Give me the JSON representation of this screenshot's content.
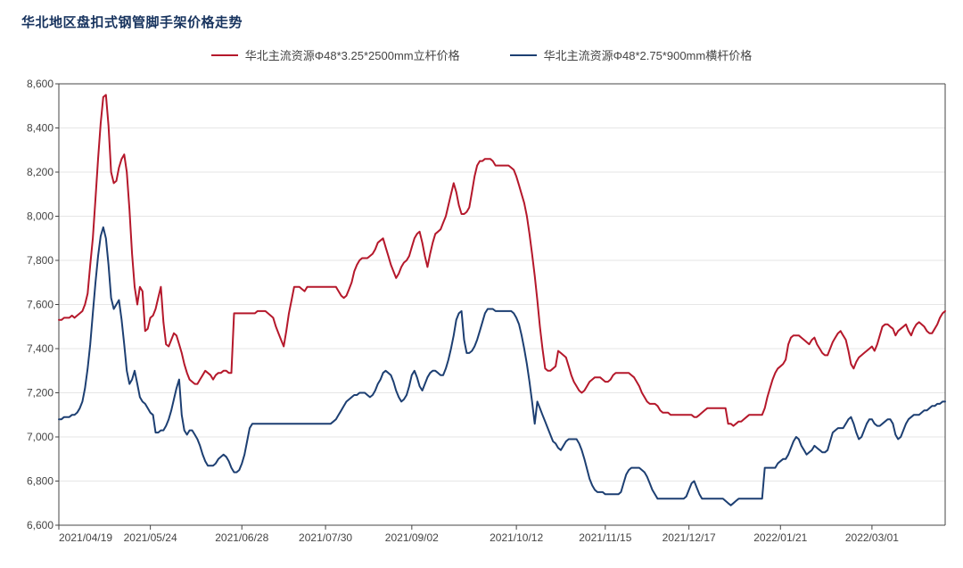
{
  "title": "华北地区盘扣式钢管脚手架价格走势",
  "background_color": "#ffffff",
  "grid_color": "#e6e6e6",
  "axis_color": "#444444",
  "label_color": "#444444",
  "label_fontsize": 12,
  "title_color": "#17335e",
  "title_fontsize": 15,
  "ylim": [
    6600,
    8600
  ],
  "ytick_step": 200,
  "ytick_labels": [
    "6,600",
    "6,800",
    "7,000",
    "7,200",
    "7,400",
    "7,600",
    "7,800",
    "8,000",
    "8,200",
    "8,400",
    "8,600"
  ],
  "xtick_positions": [
    0,
    35,
    70,
    102,
    135,
    175,
    209,
    241,
    276,
    311
  ],
  "xtick_labels": [
    "2021/04/19",
    "2021/05/24",
    "2021/06/28",
    "2021/07/30",
    "2021/09/02",
    "2021/10/12",
    "2021/11/15",
    "2021/12/17",
    "2022/01/21",
    "2022/03/01"
  ],
  "x_count": 340,
  "line_width": 2,
  "series": [
    {
      "name": "华北主流资源Φ48*3.25*2500mm立杆价格",
      "color": "#b5182b",
      "values": [
        7530,
        7530,
        7540,
        7540,
        7540,
        7550,
        7540,
        7550,
        7560,
        7570,
        7600,
        7650,
        7780,
        7900,
        8080,
        8260,
        8420,
        8540,
        8550,
        8410,
        8200,
        8150,
        8160,
        8220,
        8260,
        8280,
        8200,
        8030,
        7830,
        7680,
        7600,
        7680,
        7660,
        7480,
        7490,
        7540,
        7550,
        7580,
        7630,
        7680,
        7520,
        7420,
        7410,
        7440,
        7470,
        7460,
        7420,
        7380,
        7330,
        7290,
        7260,
        7250,
        7240,
        7240,
        7260,
        7280,
        7300,
        7290,
        7280,
        7260,
        7280,
        7290,
        7290,
        7300,
        7300,
        7290,
        7290,
        7560,
        7560,
        7560,
        7560,
        7560,
        7560,
        7560,
        7560,
        7560,
        7570,
        7570,
        7570,
        7570,
        7560,
        7550,
        7540,
        7500,
        7470,
        7440,
        7410,
        7480,
        7560,
        7620,
        7680,
        7680,
        7680,
        7670,
        7660,
        7680,
        7680,
        7680,
        7680,
        7680,
        7680,
        7680,
        7680,
        7680,
        7680,
        7680,
        7680,
        7660,
        7640,
        7630,
        7640,
        7670,
        7700,
        7750,
        7780,
        7800,
        7810,
        7810,
        7810,
        7820,
        7830,
        7850,
        7880,
        7890,
        7900,
        7860,
        7820,
        7780,
        7750,
        7720,
        7740,
        7770,
        7790,
        7800,
        7820,
        7860,
        7900,
        7920,
        7930,
        7880,
        7820,
        7770,
        7830,
        7880,
        7920,
        7930,
        7940,
        7970,
        8000,
        8050,
        8100,
        8150,
        8110,
        8050,
        8010,
        8010,
        8020,
        8040,
        8110,
        8180,
        8230,
        8250,
        8250,
        8260,
        8260,
        8260,
        8250,
        8230,
        8230,
        8230,
        8230,
        8230,
        8230,
        8220,
        8210,
        8180,
        8140,
        8100,
        8060,
        8000,
        7920,
        7830,
        7730,
        7620,
        7500,
        7400,
        7310,
        7300,
        7300,
        7310,
        7320,
        7390,
        7380,
        7370,
        7360,
        7320,
        7280,
        7250,
        7230,
        7210,
        7200,
        7210,
        7230,
        7250,
        7260,
        7270,
        7270,
        7270,
        7260,
        7250,
        7250,
        7260,
        7280,
        7290,
        7290,
        7290,
        7290,
        7290,
        7290,
        7280,
        7270,
        7250,
        7230,
        7200,
        7180,
        7160,
        7150,
        7150,
        7150,
        7140,
        7120,
        7110,
        7110,
        7110,
        7100,
        7100,
        7100,
        7100,
        7100,
        7100,
        7100,
        7100,
        7100,
        7090,
        7090,
        7100,
        7110,
        7120,
        7130,
        7130,
        7130,
        7130,
        7130,
        7130,
        7130,
        7130,
        7060,
        7060,
        7050,
        7060,
        7070,
        7070,
        7080,
        7090,
        7100,
        7100,
        7100,
        7100,
        7100,
        7100,
        7130,
        7180,
        7220,
        7260,
        7290,
        7310,
        7320,
        7330,
        7350,
        7420,
        7450,
        7460,
        7460,
        7460,
        7450,
        7440,
        7430,
        7420,
        7440,
        7450,
        7420,
        7400,
        7380,
        7370,
        7370,
        7400,
        7430,
        7450,
        7470,
        7480,
        7460,
        7440,
        7390,
        7330,
        7310,
        7340,
        7360,
        7370,
        7380,
        7390,
        7400,
        7410,
        7390,
        7420,
        7460,
        7500,
        7510,
        7510,
        7500,
        7490,
        7460,
        7480,
        7490,
        7500,
        7510,
        7480,
        7460,
        7490,
        7510,
        7520,
        7510,
        7500,
        7480,
        7470,
        7470,
        7490,
        7510,
        7540,
        7560,
        7570
      ]
    },
    {
      "name": "华北主流资源Φ48*2.75*900mm横杆价格",
      "color": "#1d3f72",
      "values": [
        7080,
        7080,
        7090,
        7090,
        7090,
        7100,
        7100,
        7110,
        7130,
        7160,
        7220,
        7310,
        7420,
        7560,
        7700,
        7820,
        7910,
        7950,
        7900,
        7780,
        7630,
        7580,
        7600,
        7620,
        7530,
        7420,
        7300,
        7240,
        7260,
        7300,
        7240,
        7180,
        7160,
        7150,
        7130,
        7110,
        7100,
        7020,
        7020,
        7030,
        7030,
        7050,
        7080,
        7120,
        7170,
        7220,
        7260,
        7100,
        7030,
        7010,
        7030,
        7030,
        7010,
        6990,
        6960,
        6920,
        6890,
        6870,
        6870,
        6870,
        6880,
        6900,
        6910,
        6920,
        6910,
        6890,
        6860,
        6840,
        6840,
        6850,
        6880,
        6920,
        6980,
        7040,
        7060,
        7060,
        7060,
        7060,
        7060,
        7060,
        7060,
        7060,
        7060,
        7060,
        7060,
        7060,
        7060,
        7060,
        7060,
        7060,
        7060,
        7060,
        7060,
        7060,
        7060,
        7060,
        7060,
        7060,
        7060,
        7060,
        7060,
        7060,
        7060,
        7060,
        7060,
        7070,
        7080,
        7100,
        7120,
        7140,
        7160,
        7170,
        7180,
        7190,
        7190,
        7200,
        7200,
        7200,
        7190,
        7180,
        7190,
        7210,
        7240,
        7260,
        7290,
        7300,
        7290,
        7280,
        7250,
        7210,
        7180,
        7160,
        7170,
        7190,
        7230,
        7280,
        7300,
        7270,
        7230,
        7210,
        7240,
        7270,
        7290,
        7300,
        7300,
        7290,
        7280,
        7280,
        7310,
        7350,
        7400,
        7460,
        7530,
        7560,
        7570,
        7440,
        7380,
        7380,
        7390,
        7410,
        7440,
        7480,
        7520,
        7560,
        7580,
        7580,
        7580,
        7570,
        7570,
        7570,
        7570,
        7570,
        7570,
        7570,
        7560,
        7540,
        7510,
        7460,
        7400,
        7330,
        7250,
        7160,
        7060,
        7160,
        7130,
        7100,
        7070,
        7040,
        7010,
        6980,
        6970,
        6950,
        6940,
        6960,
        6980,
        6990,
        6990,
        6990,
        6990,
        6970,
        6940,
        6900,
        6855,
        6810,
        6780,
        6760,
        6750,
        6750,
        6750,
        6740,
        6740,
        6740,
        6740,
        6740,
        6740,
        6750,
        6790,
        6830,
        6850,
        6860,
        6860,
        6860,
        6860,
        6850,
        6840,
        6820,
        6790,
        6760,
        6740,
        6720,
        6720,
        6720,
        6720,
        6720,
        6720,
        6720,
        6720,
        6720,
        6720,
        6720,
        6730,
        6760,
        6790,
        6800,
        6770,
        6740,
        6720,
        6720,
        6720,
        6720,
        6720,
        6720,
        6720,
        6720,
        6720,
        6710,
        6700,
        6690,
        6700,
        6710,
        6720,
        6720,
        6720,
        6720,
        6720,
        6720,
        6720,
        6720,
        6720,
        6720,
        6860,
        6860,
        6860,
        6860,
        6860,
        6880,
        6890,
        6900,
        6900,
        6920,
        6950,
        6980,
        7000,
        6990,
        6960,
        6940,
        6920,
        6930,
        6940,
        6960,
        6950,
        6940,
        6930,
        6930,
        6940,
        6980,
        7020,
        7030,
        7040,
        7040,
        7040,
        7060,
        7080,
        7090,
        7060,
        7020,
        6990,
        7000,
        7030,
        7060,
        7080,
        7080,
        7060,
        7050,
        7050,
        7060,
        7070,
        7080,
        7080,
        7060,
        7010,
        6990,
        7000,
        7030,
        7060,
        7080,
        7090,
        7100,
        7100,
        7100,
        7110,
        7120,
        7120,
        7130,
        7140,
        7140,
        7150,
        7150,
        7160,
        7160
      ]
    }
  ]
}
